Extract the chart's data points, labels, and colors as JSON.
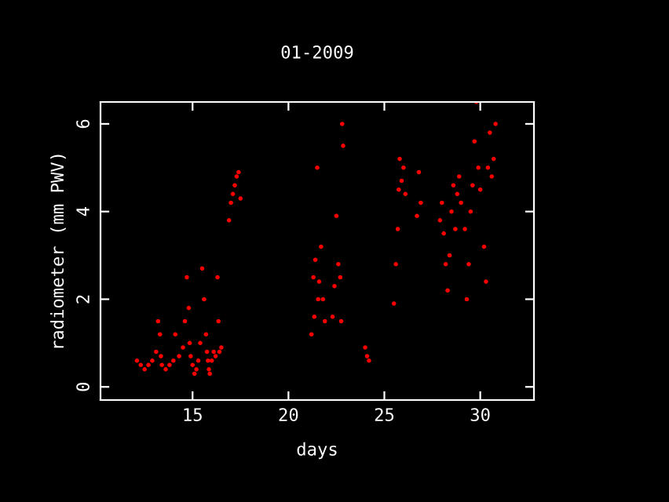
{
  "chart_data": {
    "type": "scatter",
    "title": "01-2009",
    "xlabel": "days",
    "ylabel": "radiometer (mm PWV)",
    "xlim": [
      10.2,
      32.8
    ],
    "ylim": [
      -0.3,
      6.5
    ],
    "xticks": [
      15,
      20,
      25,
      30
    ],
    "yticks": [
      0,
      2,
      4,
      6
    ],
    "grid": false,
    "marker": "circle",
    "series": [
      {
        "color": "#ff0000",
        "x": [
          12.1,
          12.3,
          12.5,
          12.7,
          12.9,
          13.1,
          13.2,
          13.3,
          13.35,
          13.4,
          13.6,
          13.8,
          14.0,
          14.1,
          14.3,
          14.5,
          14.6,
          14.7,
          14.8,
          14.85,
          14.9,
          15.0,
          15.1,
          15.2,
          15.3,
          15.4,
          15.5,
          15.6,
          15.7,
          15.75,
          15.8,
          15.85,
          15.9,
          16.0,
          16.1,
          16.2,
          16.3,
          16.35,
          16.4,
          16.5,
          16.9,
          17.0,
          17.1,
          17.2,
          17.3,
          17.4,
          17.5,
          21.2,
          21.3,
          21.35,
          21.4,
          21.5,
          21.55,
          21.6,
          21.7,
          21.8,
          21.9,
          22.3,
          22.4,
          22.5,
          22.6,
          22.7,
          22.75,
          22.8,
          22.85,
          24.0,
          24.1,
          24.2,
          25.5,
          25.6,
          25.7,
          25.75,
          25.8,
          25.9,
          26.0,
          26.1,
          26.7,
          26.8,
          26.9,
          27.9,
          28.0,
          28.1,
          28.2,
          28.3,
          28.4,
          28.5,
          28.6,
          28.7,
          28.8,
          28.9,
          29.0,
          29.2,
          29.3,
          29.4,
          29.5,
          29.6,
          29.7,
          29.8,
          29.9,
          30.0,
          30.2,
          30.3,
          30.4,
          30.5,
          30.6,
          30.7,
          30.8
        ],
        "values": [
          0.6,
          0.5,
          0.4,
          0.5,
          0.6,
          0.8,
          1.5,
          1.2,
          0.7,
          0.5,
          0.4,
          0.5,
          0.6,
          1.2,
          0.7,
          0.9,
          1.5,
          2.5,
          1.8,
          1.0,
          0.7,
          0.5,
          0.3,
          0.4,
          0.6,
          1.0,
          2.7,
          2.0,
          1.2,
          0.8,
          0.6,
          0.4,
          0.3,
          0.6,
          0.8,
          0.7,
          2.5,
          1.5,
          0.8,
          0.9,
          3.8,
          4.2,
          4.4,
          4.6,
          4.8,
          4.9,
          4.3,
          1.2,
          2.5,
          1.6,
          2.9,
          5.0,
          2.0,
          2.4,
          3.2,
          2.0,
          1.5,
          1.6,
          2.3,
          3.9,
          2.8,
          2.5,
          1.5,
          6.0,
          5.5,
          0.9,
          0.7,
          0.6,
          1.9,
          2.8,
          3.6,
          4.5,
          5.2,
          4.7,
          5.0,
          4.4,
          3.9,
          4.9,
          4.2,
          3.8,
          4.2,
          3.5,
          2.8,
          2.2,
          3.0,
          4.0,
          4.6,
          3.6,
          4.4,
          4.8,
          4.2,
          3.6,
          2.0,
          2.8,
          4.0,
          4.6,
          5.6,
          6.5,
          5.0,
          4.5,
          3.2,
          2.4,
          5.0,
          5.8,
          4.8,
          5.2,
          6.0
        ]
      }
    ]
  }
}
